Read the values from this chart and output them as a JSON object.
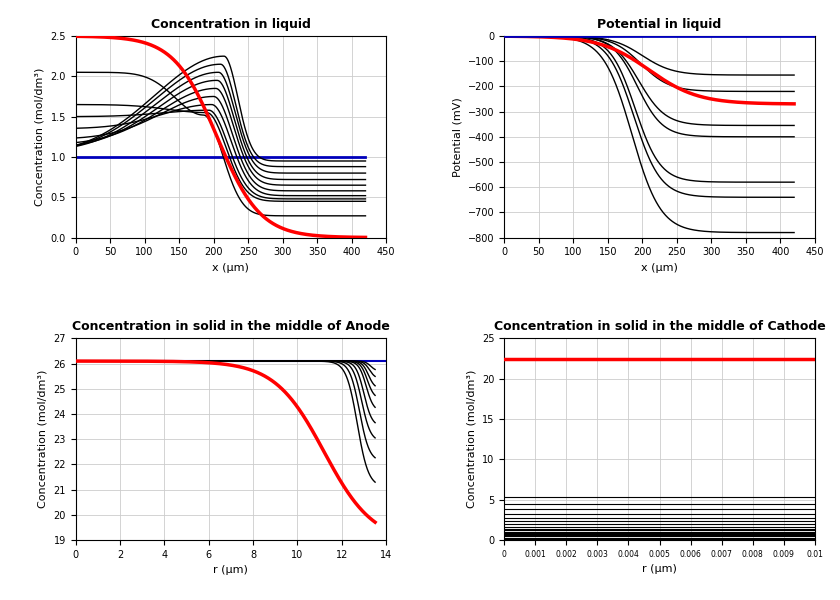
{
  "title_liquid_conc": "Concentration in liquid",
  "title_liquid_pot": "Potential in liquid",
  "title_anode": "Concentration in solid in the middle of Anode",
  "title_cathode": "Concentration in solid in the middle of Cathode",
  "xlabel_x": "x (μm)",
  "xlabel_r": "r (μm)",
  "ylabel_conc": "Concentration (mol/dm³)",
  "ylabel_pot": "Potential (mV)",
  "x_max": 420,
  "x_range": [
    0,
    450
  ],
  "r_anode_max": 13.5,
  "r_cathode_max": 0.01,
  "conc_ylim": [
    0,
    2.5
  ],
  "pot_ylim": [
    -800,
    0
  ],
  "anode_ylim": [
    19,
    27
  ],
  "cathode_ylim": [
    0,
    25
  ],
  "red_color": "#ff0000",
  "blue_color": "#0000bb",
  "black_color": "#000000",
  "grid_color": "#cccccc"
}
